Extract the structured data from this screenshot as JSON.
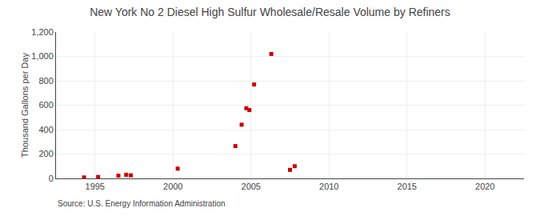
{
  "chart_data": {
    "type": "scatter",
    "title": "New York No 2 Diesel High Sulfur Wholesale/Resale Volume by Refiners",
    "ylabel": "Thousand Gallons per Day",
    "annotations": [
      "Source: U.S. Energy Information Administration"
    ],
    "x": [
      1994.3,
      1995.2,
      1996.5,
      1997.0,
      1997.3,
      2000.3,
      2004.0,
      2004.4,
      2004.7,
      2004.9,
      2005.2,
      2006.3,
      2007.5,
      2007.8
    ],
    "values": [
      8,
      12,
      22,
      30,
      25,
      80,
      265,
      440,
      575,
      560,
      770,
      1020,
      70,
      100
    ],
    "color": "#cc0000",
    "marker": "square",
    "xlim": [
      1992.5,
      2022.5
    ],
    "xticks": [
      1995,
      2000,
      2005,
      2010,
      2015,
      2020
    ],
    "ylim": [
      0,
      1200
    ],
    "yticks": [
      0,
      200,
      400,
      600,
      800,
      {
        "value": 1000,
        "label": "1,000"
      },
      {
        "value": 1200,
        "label": "1,200"
      }
    ],
    "grid": true
  }
}
